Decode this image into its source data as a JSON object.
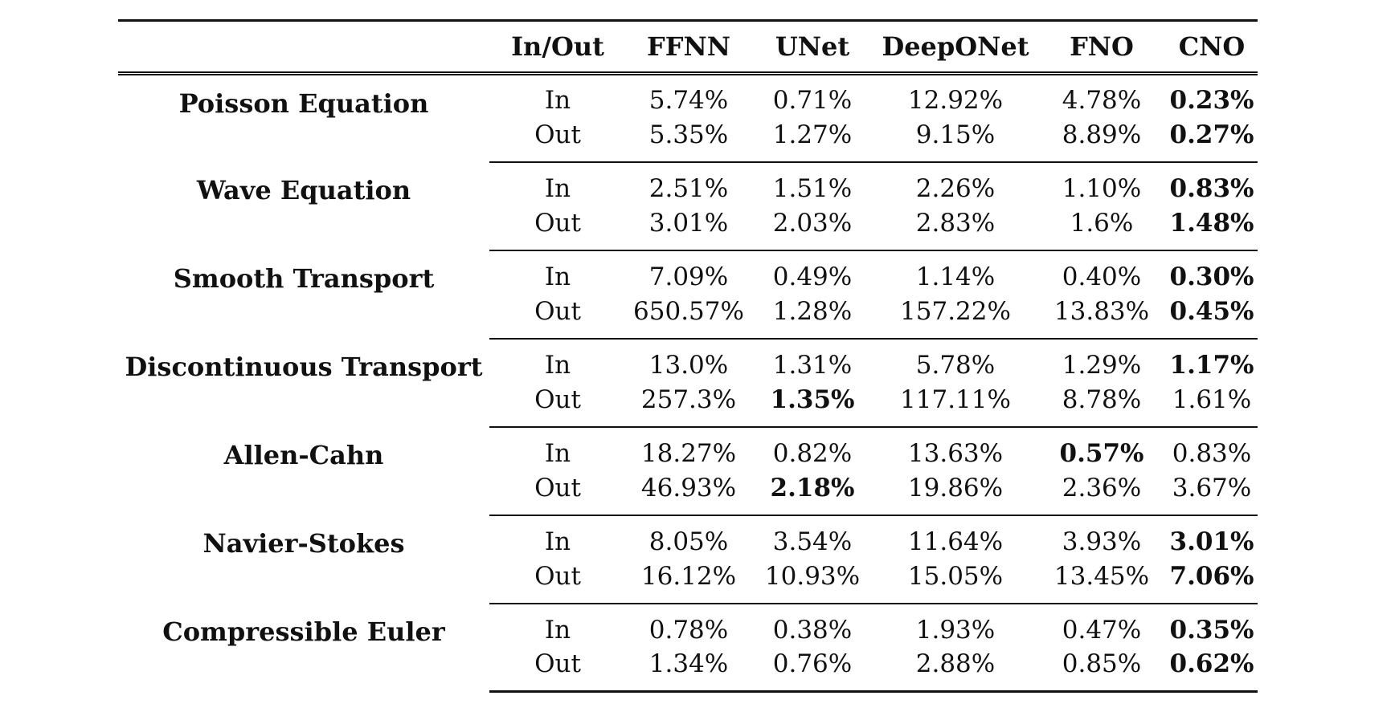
{
  "table": {
    "headers": [
      "",
      "In/Out",
      "FFNN",
      "UNet",
      "DeepONet",
      "FNO",
      "CNO"
    ],
    "rows": [
      {
        "benchmark": "Poisson Equation",
        "in": {
          "label": "In",
          "values": [
            "5.74%",
            "0.71%",
            "12.92%",
            "4.78%",
            "0.23%"
          ]
        },
        "out": {
          "label": "Out",
          "values": [
            "5.35%",
            "1.27%",
            "9.15%",
            "8.89%",
            "0.27%"
          ]
        }
      },
      {
        "benchmark": "Wave Equation",
        "in": {
          "label": "In",
          "values": [
            "2.51%",
            "1.51%",
            "2.26%",
            "1.10%",
            "0.83%"
          ]
        },
        "out": {
          "label": "Out",
          "values": [
            "3.01%",
            "2.03%",
            "2.83%",
            "1.6%",
            "1.48%"
          ]
        }
      },
      {
        "benchmark": "Smooth Transport",
        "in": {
          "label": "In",
          "values": [
            "7.09%",
            "0.49%",
            "1.14%",
            "0.40%",
            "0.30%"
          ]
        },
        "out": {
          "label": "Out",
          "values": [
            "650.57%",
            "1.28%",
            "157.22%",
            "13.83%",
            "0.45%"
          ]
        }
      },
      {
        "benchmark": "Discontinuous Transport",
        "in": {
          "label": "In",
          "values": [
            "13.0%",
            "1.31%",
            "5.78%",
            "1.29%",
            "1.17%"
          ]
        },
        "out": {
          "label": "Out",
          "values": [
            "257.3%",
            "1.35%",
            "117.11%",
            "8.78%",
            "1.61%"
          ]
        }
      },
      {
        "benchmark": "Allen-Cahn",
        "in": {
          "label": "In",
          "values": [
            "18.27%",
            "0.82%",
            "13.63%",
            "0.57%",
            "0.83%"
          ]
        },
        "out": {
          "label": "Out",
          "values": [
            "46.93%",
            "2.18%",
            "19.86%",
            "2.36%",
            "3.67%"
          ]
        }
      },
      {
        "benchmark": "Navier-Stokes",
        "in": {
          "label": "In",
          "values": [
            "8.05%",
            "3.54%",
            "11.64%",
            "3.93%",
            "3.01%"
          ]
        },
        "out": {
          "label": "Out",
          "values": [
            "16.12%",
            "10.93%",
            "15.05%",
            "13.45%",
            "7.06%"
          ]
        }
      },
      {
        "benchmark": "Compressible Euler",
        "in": {
          "label": "In",
          "values": [
            "0.78%",
            "0.38%",
            "1.93%",
            "0.47%",
            "0.35%"
          ]
        },
        "out": {
          "label": "Out",
          "values": [
            "1.34%",
            "0.76%",
            "2.88%",
            "0.85%",
            "0.62%"
          ]
        }
      }
    ]
  }
}
